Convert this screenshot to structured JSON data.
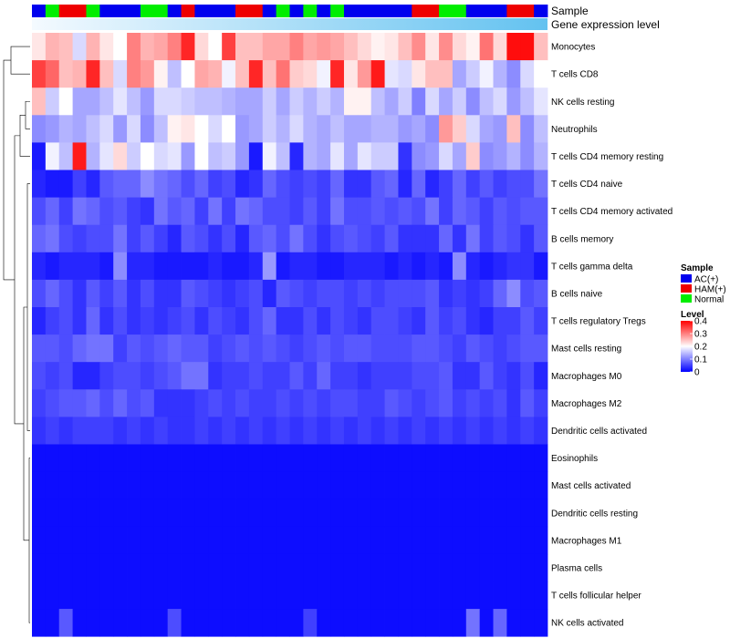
{
  "chart_data": {
    "type": "heatmap",
    "title": "",
    "annotation_labels": {
      "sample": "Sample",
      "gene_expression": "Gene expression level"
    },
    "sample_legend": {
      "title": "Sample",
      "entries": [
        {
          "label": "AC(+)",
          "color": "#0000ee"
        },
        {
          "label": "HAM(+)",
          "color": "#ee0000"
        },
        {
          "label": "Normal",
          "color": "#00ee00"
        }
      ]
    },
    "level_legend": {
      "title": "Level",
      "ticks": [
        "0.4",
        "0.3",
        "0.2",
        "0.1",
        "0"
      ],
      "range": [
        0,
        0.4
      ],
      "colors": {
        "low": "#0000ff",
        "mid": "#ffffff",
        "high": "#ff0000"
      }
    },
    "rows": [
      "Monocytes",
      "T cells CD8",
      "NK cells resting",
      "Neutrophils",
      "T cells CD4 memory resting",
      "T cells CD4 naive",
      "T cells CD4 memory activated",
      "B cells memory",
      "T cells gamma delta",
      "B cells naive",
      "T cells regulatory  Tregs",
      "Mast cells resting",
      "Macrophages M0",
      "Macrophages M2",
      "Dendritic cells activated",
      "Eosinophils",
      "Mast cells activated",
      "Dendritic cells resting",
      "Macrophages M1",
      "Plasma cells",
      "T cells follicular helper",
      "NK cells activated"
    ],
    "sample_groups": [
      "AC(+)",
      "Normal",
      "HAM(+)",
      "HAM(+)",
      "Normal",
      "AC(+)",
      "AC(+)",
      "AC(+)",
      "Normal",
      "Normal",
      "AC(+)",
      "HAM(+)",
      "AC(+)",
      "AC(+)",
      "AC(+)",
      "HAM(+)",
      "HAM(+)",
      "AC(+)",
      "Normal",
      "AC(+)",
      "Normal",
      "AC(+)",
      "Normal",
      "AC(+)",
      "AC(+)",
      "AC(+)",
      "AC(+)",
      "AC(+)",
      "HAM(+)",
      "HAM(+)",
      "Normal",
      "Normal",
      "AC(+)",
      "AC(+)",
      "AC(+)",
      "HAM(+)",
      "HAM(+)",
      "AC(+)"
    ],
    "values": [
      [
        0.22,
        0.26,
        0.25,
        0.17,
        0.26,
        0.22,
        0.2,
        0.3,
        0.26,
        0.27,
        0.3,
        0.37,
        0.23,
        0.2,
        0.35,
        0.25,
        0.25,
        0.27,
        0.27,
        0.3,
        0.27,
        0.28,
        0.27,
        0.25,
        0.23,
        0.21,
        0.22,
        0.25,
        0.29,
        0.22,
        0.29,
        0.23,
        0.21,
        0.31,
        0.23,
        0.39,
        0.39,
        0.25
      ],
      [
        0.35,
        0.32,
        0.25,
        0.26,
        0.37,
        0.25,
        0.17,
        0.3,
        0.28,
        0.21,
        0.15,
        0.2,
        0.27,
        0.26,
        0.19,
        0.25,
        0.37,
        0.25,
        0.31,
        0.24,
        0.23,
        0.19,
        0.37,
        0.22,
        0.28,
        0.38,
        0.18,
        0.17,
        0.22,
        0.25,
        0.25,
        0.13,
        0.16,
        0.19,
        0.14,
        0.11,
        0.17,
        0.2
      ],
      [
        0.25,
        0.16,
        0.2,
        0.13,
        0.13,
        0.15,
        0.18,
        0.15,
        0.12,
        0.17,
        0.17,
        0.16,
        0.15,
        0.15,
        0.14,
        0.13,
        0.13,
        0.16,
        0.13,
        0.16,
        0.14,
        0.16,
        0.14,
        0.21,
        0.21,
        0.15,
        0.13,
        0.16,
        0.1,
        0.17,
        0.13,
        0.16,
        0.11,
        0.15,
        0.17,
        0.12,
        0.15,
        0.18
      ],
      [
        0.11,
        0.12,
        0.14,
        0.13,
        0.15,
        0.17,
        0.12,
        0.17,
        0.11,
        0.15,
        0.21,
        0.22,
        0.2,
        0.17,
        0.2,
        0.12,
        0.13,
        0.16,
        0.14,
        0.17,
        0.14,
        0.13,
        0.15,
        0.13,
        0.13,
        0.14,
        0.14,
        0.12,
        0.13,
        0.11,
        0.28,
        0.24,
        0.17,
        0.13,
        0.12,
        0.25,
        0.11,
        0.15
      ],
      [
        0.02,
        0.19,
        0.15,
        0.38,
        0.14,
        0.18,
        0.23,
        0.16,
        0.2,
        0.17,
        0.18,
        0.12,
        0.2,
        0.15,
        0.16,
        0.12,
        0.02,
        0.19,
        0.15,
        0.03,
        0.14,
        0.13,
        0.18,
        0.13,
        0.18,
        0.16,
        0.16,
        0.04,
        0.11,
        0.12,
        0.17,
        0.13,
        0.24,
        0.11,
        0.12,
        0.14,
        0.11,
        0.14
      ],
      [
        0.03,
        0.02,
        0.02,
        0.05,
        0.03,
        0.07,
        0.08,
        0.08,
        0.11,
        0.09,
        0.08,
        0.06,
        0.08,
        0.05,
        0.06,
        0.03,
        0.04,
        0.08,
        0.06,
        0.05,
        0.06,
        0.05,
        0.08,
        0.04,
        0.04,
        0.07,
        0.08,
        0.03,
        0.08,
        0.03,
        0.05,
        0.08,
        0.05,
        0.07,
        0.05,
        0.06,
        0.06,
        0.09
      ],
      [
        0.06,
        0.08,
        0.05,
        0.09,
        0.08,
        0.06,
        0.07,
        0.05,
        0.04,
        0.09,
        0.07,
        0.08,
        0.05,
        0.09,
        0.05,
        0.09,
        0.08,
        0.06,
        0.06,
        0.05,
        0.07,
        0.05,
        0.09,
        0.06,
        0.06,
        0.07,
        0.06,
        0.07,
        0.06,
        0.09,
        0.05,
        0.08,
        0.07,
        0.05,
        0.07,
        0.06,
        0.07,
        0.07
      ],
      [
        0.08,
        0.09,
        0.06,
        0.05,
        0.06,
        0.06,
        0.09,
        0.05,
        0.07,
        0.05,
        0.03,
        0.07,
        0.06,
        0.04,
        0.06,
        0.03,
        0.07,
        0.08,
        0.06,
        0.09,
        0.06,
        0.04,
        0.06,
        0.07,
        0.06,
        0.05,
        0.07,
        0.04,
        0.04,
        0.04,
        0.08,
        0.04,
        0.09,
        0.05,
        0.07,
        0.06,
        0.04,
        0.07
      ],
      [
        0.03,
        0.02,
        0.03,
        0.03,
        0.03,
        0.02,
        0.11,
        0.03,
        0.03,
        0.02,
        0.02,
        0.02,
        0.02,
        0.03,
        0.02,
        0.02,
        0.03,
        0.12,
        0.02,
        0.03,
        0.03,
        0.02,
        0.02,
        0.03,
        0.03,
        0.03,
        0.02,
        0.03,
        0.02,
        0.03,
        0.02,
        0.11,
        0.03,
        0.02,
        0.03,
        0.04,
        0.04,
        0.02
      ],
      [
        0.06,
        0.08,
        0.06,
        0.04,
        0.07,
        0.05,
        0.07,
        0.04,
        0.06,
        0.04,
        0.04,
        0.07,
        0.06,
        0.05,
        0.04,
        0.05,
        0.06,
        0.03,
        0.07,
        0.06,
        0.05,
        0.06,
        0.06,
        0.05,
        0.06,
        0.05,
        0.06,
        0.06,
        0.06,
        0.07,
        0.04,
        0.05,
        0.04,
        0.05,
        0.08,
        0.11,
        0.06,
        0.07
      ],
      [
        0.03,
        0.05,
        0.06,
        0.04,
        0.08,
        0.04,
        0.06,
        0.04,
        0.05,
        0.04,
        0.05,
        0.06,
        0.04,
        0.06,
        0.05,
        0.04,
        0.06,
        0.08,
        0.04,
        0.04,
        0.06,
        0.04,
        0.06,
        0.05,
        0.04,
        0.06,
        0.06,
        0.05,
        0.04,
        0.07,
        0.05,
        0.06,
        0.04,
        0.03,
        0.05,
        0.05,
        0.07,
        0.05
      ],
      [
        0.07,
        0.07,
        0.06,
        0.08,
        0.09,
        0.09,
        0.05,
        0.07,
        0.06,
        0.07,
        0.08,
        0.07,
        0.07,
        0.05,
        0.06,
        0.07,
        0.06,
        0.07,
        0.06,
        0.05,
        0.06,
        0.07,
        0.06,
        0.07,
        0.07,
        0.06,
        0.06,
        0.06,
        0.07,
        0.07,
        0.06,
        0.05,
        0.07,
        0.06,
        0.05,
        0.06,
        0.07,
        0.07
      ],
      [
        0.06,
        0.05,
        0.06,
        0.03,
        0.03,
        0.05,
        0.06,
        0.06,
        0.05,
        0.06,
        0.07,
        0.09,
        0.09,
        0.04,
        0.05,
        0.05,
        0.06,
        0.05,
        0.05,
        0.07,
        0.05,
        0.08,
        0.05,
        0.05,
        0.04,
        0.05,
        0.05,
        0.05,
        0.06,
        0.06,
        0.07,
        0.04,
        0.04,
        0.07,
        0.05,
        0.04,
        0.06,
        0.03
      ],
      [
        0.05,
        0.06,
        0.07,
        0.07,
        0.08,
        0.06,
        0.08,
        0.06,
        0.07,
        0.04,
        0.04,
        0.04,
        0.05,
        0.06,
        0.05,
        0.06,
        0.05,
        0.05,
        0.06,
        0.05,
        0.06,
        0.05,
        0.06,
        0.06,
        0.05,
        0.05,
        0.07,
        0.06,
        0.05,
        0.06,
        0.07,
        0.05,
        0.06,
        0.05,
        0.06,
        0.04,
        0.07,
        0.05
      ],
      [
        0.04,
        0.05,
        0.04,
        0.05,
        0.05,
        0.05,
        0.04,
        0.05,
        0.04,
        0.05,
        0.04,
        0.04,
        0.05,
        0.04,
        0.05,
        0.04,
        0.05,
        0.04,
        0.05,
        0.04,
        0.05,
        0.04,
        0.05,
        0.04,
        0.05,
        0.04,
        0.05,
        0.04,
        0.05,
        0.04,
        0.05,
        0.04,
        0.05,
        0.04,
        0.05,
        0.04,
        0.05,
        0.04
      ],
      [
        0.01,
        0.01,
        0.01,
        0.01,
        0.01,
        0.01,
        0.01,
        0.01,
        0.01,
        0.01,
        0.01,
        0.01,
        0.01,
        0.01,
        0.01,
        0.01,
        0.01,
        0.01,
        0.01,
        0.01,
        0.01,
        0.01,
        0.01,
        0.01,
        0.01,
        0.01,
        0.01,
        0.01,
        0.01,
        0.01,
        0.01,
        0.01,
        0.01,
        0.01,
        0.01,
        0.01,
        0.01,
        0.01
      ],
      [
        0.01,
        0.01,
        0.01,
        0.01,
        0.01,
        0.01,
        0.01,
        0.01,
        0.01,
        0.01,
        0.01,
        0.01,
        0.01,
        0.01,
        0.01,
        0.01,
        0.01,
        0.01,
        0.01,
        0.01,
        0.01,
        0.01,
        0.01,
        0.01,
        0.01,
        0.01,
        0.01,
        0.01,
        0.01,
        0.01,
        0.01,
        0.01,
        0.01,
        0.01,
        0.01,
        0.01,
        0.01,
        0.01
      ],
      [
        0.01,
        0.01,
        0.01,
        0.01,
        0.01,
        0.01,
        0.01,
        0.01,
        0.01,
        0.01,
        0.01,
        0.01,
        0.01,
        0.01,
        0.01,
        0.01,
        0.01,
        0.01,
        0.01,
        0.01,
        0.01,
        0.01,
        0.01,
        0.01,
        0.01,
        0.01,
        0.01,
        0.01,
        0.01,
        0.01,
        0.01,
        0.01,
        0.01,
        0.01,
        0.01,
        0.01,
        0.01,
        0.01
      ],
      [
        0.01,
        0.01,
        0.01,
        0.01,
        0.01,
        0.01,
        0.01,
        0.01,
        0.01,
        0.01,
        0.01,
        0.01,
        0.01,
        0.01,
        0.01,
        0.01,
        0.01,
        0.01,
        0.01,
        0.01,
        0.01,
        0.01,
        0.01,
        0.01,
        0.01,
        0.01,
        0.01,
        0.01,
        0.01,
        0.01,
        0.01,
        0.01,
        0.01,
        0.01,
        0.01,
        0.01,
        0.01,
        0.01
      ],
      [
        0.01,
        0.01,
        0.01,
        0.01,
        0.01,
        0.01,
        0.01,
        0.01,
        0.01,
        0.01,
        0.01,
        0.01,
        0.01,
        0.01,
        0.01,
        0.01,
        0.01,
        0.01,
        0.01,
        0.01,
        0.01,
        0.01,
        0.01,
        0.01,
        0.01,
        0.01,
        0.01,
        0.01,
        0.01,
        0.01,
        0.01,
        0.01,
        0.01,
        0.01,
        0.01,
        0.01,
        0.01,
        0.01
      ],
      [
        0.01,
        0.01,
        0.01,
        0.01,
        0.01,
        0.01,
        0.01,
        0.01,
        0.01,
        0.01,
        0.01,
        0.01,
        0.01,
        0.01,
        0.01,
        0.01,
        0.01,
        0.01,
        0.01,
        0.01,
        0.01,
        0.01,
        0.01,
        0.01,
        0.01,
        0.01,
        0.01,
        0.01,
        0.01,
        0.01,
        0.01,
        0.01,
        0.01,
        0.01,
        0.01,
        0.01,
        0.01,
        0.01
      ],
      [
        0.01,
        0.01,
        0.07,
        0.01,
        0.01,
        0.01,
        0.01,
        0.01,
        0.01,
        0.01,
        0.06,
        0.01,
        0.01,
        0.01,
        0.01,
        0.01,
        0.01,
        0.01,
        0.01,
        0.01,
        0.05,
        0.01,
        0.01,
        0.01,
        0.01,
        0.01,
        0.01,
        0.01,
        0.01,
        0.01,
        0.01,
        0.01,
        0.09,
        0.01,
        0.08,
        0.01,
        0.01,
        0.01
      ]
    ]
  }
}
